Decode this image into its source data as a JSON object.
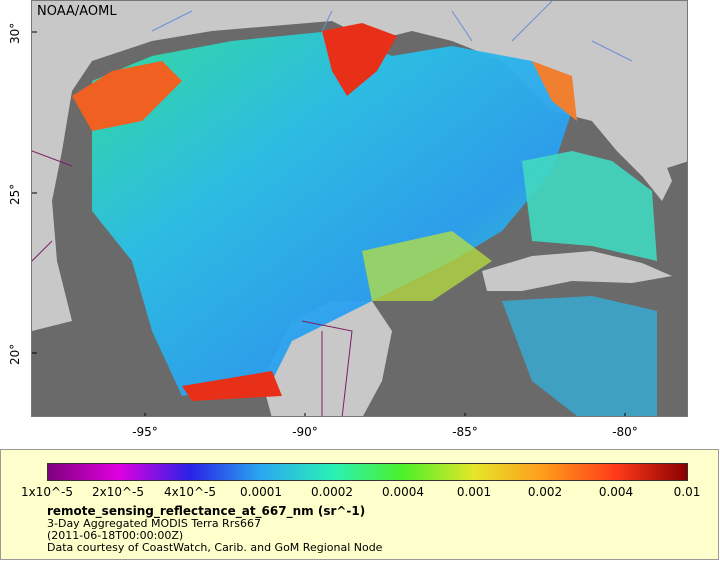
{
  "map": {
    "credit": "NOAA/AOML",
    "x_ticks": [
      "-95°",
      "-90°",
      "-85°",
      "-80°"
    ],
    "y_ticks": [
      "30°",
      "25°",
      "20°"
    ],
    "colors": {
      "ocean_nodata": "#6a6a6a",
      "land": "#c8c8c8",
      "rivers": "#6b8fd6",
      "borders": "#7a1f63"
    }
  },
  "legend": {
    "tick_labels": [
      "1x10^-5",
      "2x10^-5",
      "4x10^-5",
      "0.0001",
      "0.0002",
      "0.0004",
      "0.001",
      "0.002",
      "0.004",
      "0.01"
    ],
    "variable": "remote_sensing_reflectance_at_667_nm (sr^-1)",
    "line1": "3-Day Aggregated MODIS Terra Rrs667",
    "line2": "(2011-06-18T00:00:00Z)",
    "line3": "Data courtesy of CoastWatch, Carib. and GoM Regional Node",
    "colormap": [
      "#7f007f",
      "#e000e0",
      "#2a22e6",
      "#2aa8f0",
      "#2af0b8",
      "#4cf02a",
      "#e6e62a",
      "#ff9a1a",
      "#ff3a1a",
      "#8a0000"
    ]
  }
}
